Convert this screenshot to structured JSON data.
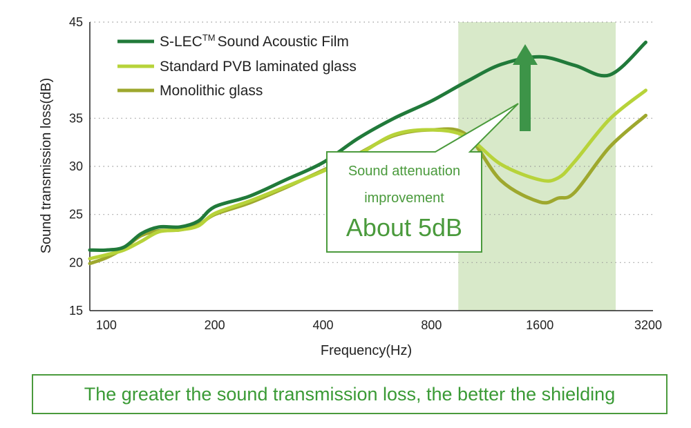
{
  "chart_data": {
    "type": "line",
    "xlabel": "Frequency(Hz)",
    "ylabel": "Sound transmission loss(dB)",
    "x_scale": "log2",
    "x_ticks": [
      100,
      200,
      400,
      800,
      1600,
      3200
    ],
    "x_tick_labels": [
      "100",
      "200",
      "400",
      "800",
      "1600",
      "3200"
    ],
    "xlim": [
      90,
      3300
    ],
    "ylim": [
      15,
      45
    ],
    "y_ticks": [
      15,
      20,
      25,
      30,
      35,
      45
    ],
    "y_tick_labels": [
      "15",
      "20",
      "25",
      "30",
      "35",
      "45"
    ],
    "grid": "horizontal dotted",
    "legend_position": "top-left",
    "highlight_band": {
      "x_from": 950,
      "x_to": 2600,
      "color": "#d8e9c9"
    },
    "series": [
      {
        "name_prefix": "S-LEC",
        "name_superscript": "TM",
        "name_suffix": "Sound Acoustic Film",
        "color": "#217a3a",
        "x": [
          90,
          100,
          112,
          125,
          140,
          160,
          180,
          200,
          250,
          315,
          400,
          500,
          630,
          800,
          1000,
          1250,
          1600,
          2000,
          2500,
          3150
        ],
        "y": [
          21.3,
          21.3,
          21.6,
          23.0,
          23.7,
          23.7,
          24.3,
          25.8,
          26.9,
          28.6,
          30.4,
          32.9,
          35.0,
          36.8,
          38.8,
          40.6,
          41.4,
          40.5,
          39.5,
          42.9
        ]
      },
      {
        "name": "Standard PVB laminated glass",
        "color": "#b7d33a",
        "x": [
          90,
          100,
          112,
          125,
          140,
          160,
          180,
          200,
          250,
          315,
          400,
          500,
          630,
          800,
          1000,
          1250,
          1600,
          1800,
          2000,
          2500,
          3150
        ],
        "y": [
          20.4,
          20.8,
          21.3,
          22.2,
          23.2,
          23.4,
          23.8,
          25.1,
          26.4,
          27.9,
          29.5,
          31.2,
          33.3,
          33.8,
          33.1,
          30.2,
          28.6,
          28.8,
          30.5,
          34.9,
          37.9
        ]
      },
      {
        "name": "Monolithic glass",
        "color": "#9ea82e",
        "x": [
          90,
          100,
          112,
          125,
          140,
          160,
          180,
          200,
          250,
          315,
          400,
          500,
          630,
          800,
          1000,
          1250,
          1600,
          1800,
          2000,
          2500,
          3150
        ],
        "y": [
          19.9,
          20.5,
          21.5,
          22.8,
          23.3,
          23.4,
          23.9,
          25.0,
          26.2,
          27.8,
          29.6,
          31.3,
          33.2,
          33.8,
          33.3,
          28.5,
          26.3,
          26.7,
          27.3,
          32.0,
          35.3
        ]
      }
    ],
    "annotation": {
      "line1": "Sound attenuation",
      "line2": "improvement",
      "line3": "About 5dB"
    },
    "footer": "The greater the sound transmission loss, the better the shielding"
  }
}
